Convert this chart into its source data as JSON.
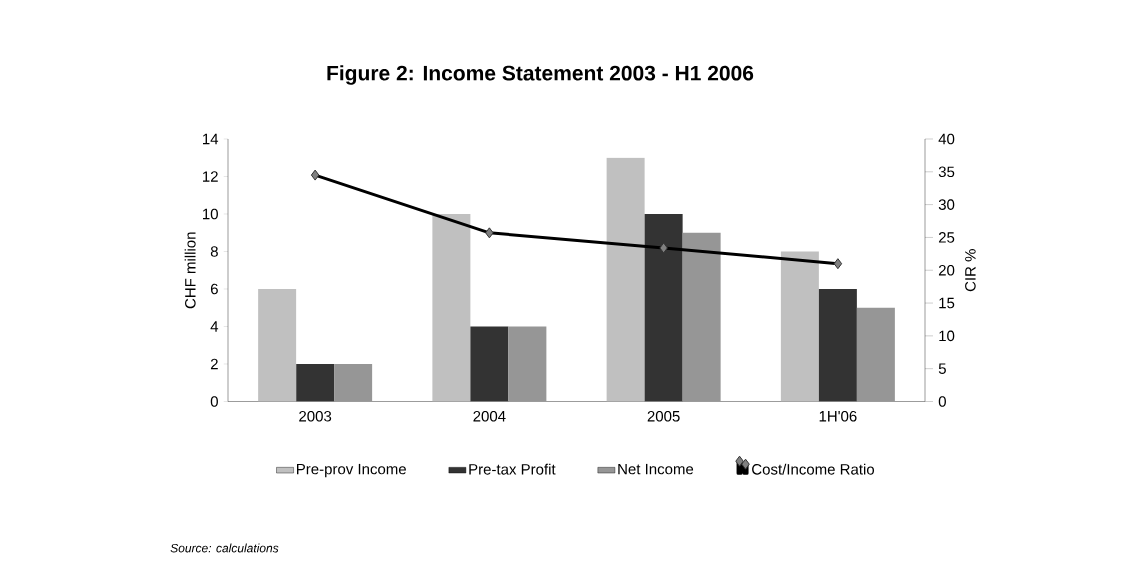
{
  "chart_data": {
    "type": "bar",
    "title": "Figure 2: Income Statement 2003 - H1 2006",
    "ylabel": "CHF million",
    "y2label": "CIR %",
    "categories": [
      "2003",
      "2004",
      "2005",
      "1H'06"
    ],
    "series": [
      {
        "name": "Pre-prov Income",
        "color": "#c0c0c0",
        "values": [
          6,
          10,
          13,
          8
        ]
      },
      {
        "name": "Pre-tax Profit",
        "color": "#333333",
        "values": [
          2,
          4,
          10,
          6
        ]
      },
      {
        "name": "Net Income",
        "color": "#969696",
        "values": [
          2,
          4,
          9,
          5
        ]
      },
      {
        "name": "Cost/Income Ratio",
        "type": "line",
        "axis": "y2",
        "color": "#000000",
        "values": [
          34.5,
          25.7,
          23.4,
          21
        ]
      }
    ],
    "ylim": [
      0,
      14
    ],
    "yticks": [
      0,
      2,
      4,
      6,
      8,
      10,
      12,
      14
    ],
    "y2lim": [
      0,
      40
    ],
    "y2ticks": [
      0,
      5,
      10,
      15,
      20,
      25,
      30,
      35,
      40
    ],
    "marker": "diamond",
    "legend": "bottom",
    "annotations": [
      "Source: calculations"
    ]
  }
}
